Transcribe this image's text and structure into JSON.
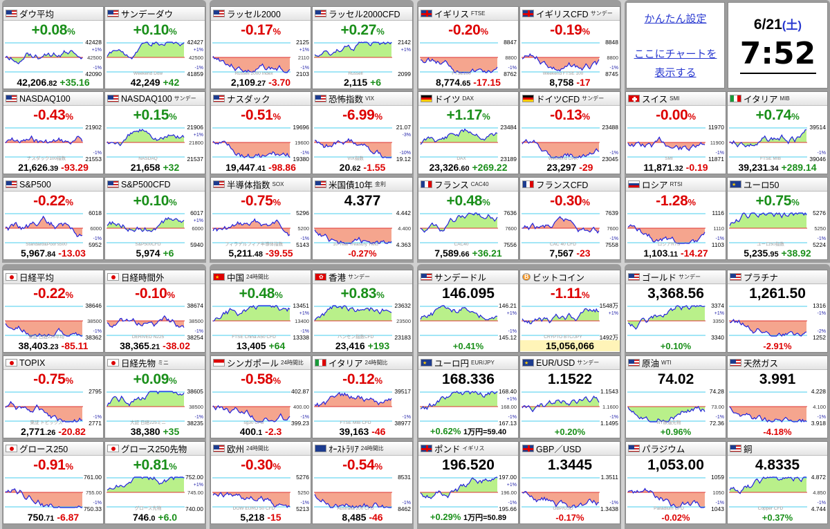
{
  "page": {
    "title": "",
    "setup_link": "かんたん設定",
    "chart_link_1": "ここにチャートを",
    "chart_link_2": "表示する"
  },
  "clock": {
    "date": "6/21",
    "weekday": "(土)",
    "time": "7:52"
  },
  "colors": {
    "up": "#1a8f1a",
    "down": "#dd0000",
    "fill_up": "#b9f08a",
    "fill_down": "#f5a58e",
    "line": "#2222dd",
    "link": "#2a3ad0"
  },
  "tiles": [
    {
      "name": "ダウ平均",
      "sub": "",
      "flag": "us",
      "chg": "+0.08",
      "dir": "up",
      "int": "42,206",
      "dec": ".82",
      "diff": "+35.16",
      "ddir": "up",
      "hi": "42428",
      "lo": "42090",
      "tag": "",
      "side": "+1%",
      "side2": "-1%",
      "mid": "42500",
      "seed": 1
    },
    {
      "name": "サンデーダウ",
      "sub": "",
      "flag": "us",
      "chg": "+0.10",
      "dir": "up",
      "int": "42,249",
      "dec": "",
      "diff": "+42",
      "ddir": "up",
      "hi": "42427",
      "lo": "41859",
      "tag": "Weekend Dow",
      "side": "+1%",
      "side2": "-1%",
      "mid": "42500",
      "seed": 2
    },
    {
      "name": "ラッセル2000",
      "sub": "",
      "flag": "us",
      "chg": "-0.17",
      "dir": "dn",
      "int": "2,109",
      "dec": ".27",
      "diff": "-3.70",
      "ddir": "dn",
      "hi": "2125",
      "lo": "2103",
      "tag": "Russell 2000 Index",
      "side": "+1%",
      "side2": "-1%",
      "mid": "2110",
      "seed": 3
    },
    {
      "name": "ラッセル2000CFD",
      "sub": "",
      "flag": "us",
      "chg": "+0.27",
      "dir": "up",
      "int": "2,115",
      "dec": "",
      "diff": "+6",
      "ddir": "up",
      "hi": "2142",
      "lo": "2099",
      "tag": "Russell",
      "side": "+1%",
      "side2": "",
      "mid": "",
      "seed": 4
    },
    {
      "name": "イギリス",
      "sub": "FTSE",
      "flag": "uk",
      "chg": "-0.20",
      "dir": "dn",
      "int": "8,774",
      "dec": ".65",
      "diff": "-17.15",
      "ddir": "dn",
      "hi": "8847",
      "lo": "8762",
      "tag": "FTSE100",
      "side": "",
      "side2": "-1%",
      "mid": "8800",
      "seed": 5
    },
    {
      "name": "イギリスCFD",
      "sub": "サンデー",
      "flag": "uk",
      "chg": "-0.19",
      "dir": "dn",
      "int": "8,758",
      "dec": "",
      "diff": "-17",
      "ddir": "dn",
      "hi": "8848",
      "lo": "8745",
      "tag": "Weekend FTSE 100",
      "side": "",
      "side2": "-1%",
      "mid": "8800",
      "seed": 6
    },
    {
      "name": "NASDAQ100",
      "sub": "",
      "flag": "us",
      "chg": "-0.43",
      "dir": "dn",
      "int": "21,626",
      "dec": ".39",
      "diff": "-93.29",
      "ddir": "dn",
      "hi": "21902",
      "lo": "21553",
      "tag": "ナスダック100指数",
      "side": "",
      "side2": "-1%",
      "mid": "",
      "seed": 7
    },
    {
      "name": "NASDAQ100",
      "sub": "サンデー",
      "flag": "us",
      "chg": "+0.15",
      "dir": "up",
      "int": "21,658",
      "dec": "",
      "diff": "+32",
      "ddir": "up",
      "hi": "21906",
      "lo": "21537",
      "tag": "NASDAQ",
      "side": "+1%",
      "side2": "",
      "mid": "21800",
      "seed": 8
    },
    {
      "name": "ナスダック",
      "sub": "",
      "flag": "us",
      "chg": "-0.51",
      "dir": "dn",
      "int": "19,447",
      "dec": ".41",
      "diff": "-98.86",
      "ddir": "dn",
      "hi": "19696",
      "lo": "19380",
      "tag": "",
      "side": "",
      "side2": "-1%",
      "mid": "19600",
      "seed": 9
    },
    {
      "name": "恐怖指数",
      "sub": "VIX",
      "flag": "us",
      "chg": "-6.99",
      "dir": "dn",
      "int": "20",
      "dec": ".62",
      "diff": "-1.55",
      "ddir": "dn",
      "hi": "21.07",
      "lo": "19.12",
      "tag": "VIX指数",
      "side": "-3%",
      "side2": "-10%",
      "mid": "",
      "seed": 10
    },
    {
      "name": "ドイツ",
      "sub": "DAX",
      "flag": "de",
      "chg": "+1.17",
      "dir": "up",
      "int": "23,326",
      "dec": ".60",
      "diff": "+269.22",
      "ddir": "up",
      "hi": "23484",
      "lo": "23189",
      "tag": "DAX",
      "side": "",
      "side2": "",
      "mid": "",
      "seed": 11
    },
    {
      "name": "ドイツCFD",
      "sub": "サンデー",
      "flag": "de",
      "chg": "-0.13",
      "dir": "dn",
      "int": "23,297",
      "dec": "",
      "diff": "-29",
      "ddir": "dn",
      "hi": "23488",
      "lo": "23045",
      "tag": "Weekend DAX",
      "side": "",
      "side2": "-1%",
      "mid": "",
      "seed": 12
    },
    {
      "name": "スイス",
      "sub": "SMI",
      "flag": "ch",
      "chg": "-0.00",
      "dir": "dn",
      "int": "11,871",
      "dec": ".32",
      "diff": "-0.19",
      "ddir": "dn",
      "hi": "11970",
      "lo": "11871",
      "tag": "SMI",
      "side": "",
      "side2": "-1%",
      "mid": "11900",
      "seed": 13
    },
    {
      "name": "イタリア",
      "sub": "MIB",
      "flag": "it",
      "chg": "+0.74",
      "dir": "up",
      "int": "39,231",
      "dec": ".34",
      "diff": "+289.14",
      "ddir": "up",
      "hi": "39514",
      "lo": "39046",
      "tag": "FTSE MIB",
      "side": "",
      "side2": "-1%",
      "mid": "",
      "seed": 14
    },
    {
      "name": "S&P500",
      "sub": "",
      "flag": "us",
      "chg": "-0.22",
      "dir": "dn",
      "int": "5,967",
      "dec": ".84",
      "diff": "-13.03",
      "ddir": "dn",
      "hi": "6018",
      "lo": "5952",
      "tag": "Standard&Poor's500",
      "side": "",
      "side2": "-1%",
      "mid": "6000",
      "seed": 15
    },
    {
      "name": "S&P500CFD",
      "sub": "",
      "flag": "us",
      "chg": "+0.10",
      "dir": "up",
      "int": "5,974",
      "dec": "",
      "diff": "+6",
      "ddir": "up",
      "hi": "6017",
      "lo": "5940",
      "tag": "S&P500CFD",
      "side": "+1%",
      "side2": "",
      "mid": "6000",
      "seed": 16
    },
    {
      "name": "半導体指数",
      "sub": "SOX",
      "flag": "us",
      "chg": "-0.75",
      "dir": "dn",
      "int": "5,211",
      "dec": ".48",
      "diff": "-39.55",
      "ddir": "dn",
      "hi": "5296",
      "lo": "5143",
      "tag": "フィラデルフィア半導体指数",
      "side": "",
      "side2": "-1%",
      "mid": "5200",
      "seed": 17
    },
    {
      "name": "米国債10年",
      "sub": "金利",
      "flag": "us",
      "chg": "4.377",
      "dir": "bk",
      "int": "",
      "dec": "",
      "diff": "-0.27%",
      "ddir": "dn",
      "hi": "4.442",
      "lo": "4.363",
      "tag": "10-Year Treasury Yield",
      "side": "",
      "side2": "",
      "mid": "4.400",
      "seed": 18,
      "bigmode": true
    },
    {
      "name": "フランス",
      "sub": "CAC40",
      "flag": "fr",
      "chg": "+0.48",
      "dir": "up",
      "int": "7,589",
      "dec": ".66",
      "diff": "+36.21",
      "ddir": "up",
      "hi": "7636",
      "lo": "7556",
      "tag": "CAC40",
      "side": "",
      "side2": "",
      "mid": "7600",
      "seed": 19
    },
    {
      "name": "フランスCFD",
      "sub": "",
      "flag": "fr",
      "chg": "-0.30",
      "dir": "dn",
      "int": "7,567",
      "dec": "",
      "diff": "-23",
      "ddir": "dn",
      "hi": "7639",
      "lo": "7558",
      "tag": "CAC 40 CFD",
      "side": "",
      "side2": "-1%",
      "mid": "7600",
      "seed": 20
    },
    {
      "name": "ロシア",
      "sub": "RTSI",
      "flag": "ru",
      "chg": "-1.28",
      "dir": "dn",
      "int": "1,103",
      "dec": ".11",
      "diff": "-14.27",
      "ddir": "dn",
      "hi": "1116",
      "lo": "1103",
      "tag": "ロシアRTS",
      "side": "",
      "side2": "-1%",
      "mid": "1110",
      "seed": 21
    },
    {
      "name": "ユーロ50",
      "sub": "",
      "flag": "eu",
      "chg": "+0.75",
      "dir": "up",
      "int": "5,235",
      "dec": ".95",
      "diff": "+38.92",
      "ddir": "up",
      "hi": "5276",
      "lo": "5224",
      "tag": "ユーロ50指数",
      "side": "",
      "side2": "-1%",
      "mid": "5250",
      "seed": 22
    },
    {
      "name": "日経平均",
      "sub": "",
      "flag": "jp",
      "chg": "-0.22",
      "dir": "dn",
      "int": "38,403",
      "dec": ".23",
      "diff": "-85.11",
      "ddir": "dn",
      "hi": "38646",
      "lo": "38362",
      "tag": "東証 日経225平均",
      "side": "",
      "side2": "-1%",
      "mid": "38500",
      "seed": 23
    },
    {
      "name": "日経時間外",
      "sub": "",
      "flag": "jp",
      "chg": "-0.10",
      "dir": "dn",
      "int": "38,365",
      "dec": ".21",
      "diff": "-38.02",
      "ddir": "dn",
      "hi": "38674",
      "lo": "38254",
      "tag": "DERIVED N225",
      "side": "",
      "side2": "-1%",
      "mid": "38500",
      "seed": 24
    },
    {
      "name": "中国",
      "sub": "24時間比",
      "flag": "cn",
      "chg": "+0.48",
      "dir": "up",
      "int": "13,405",
      "dec": "",
      "diff": "+64",
      "ddir": "up",
      "hi": "13451",
      "lo": "13338",
      "tag": "FTSE China A50 CFD",
      "side": "+1%",
      "side2": "-1%",
      "mid": "13400",
      "seed": 25
    },
    {
      "name": "香港",
      "sub": "サンデー",
      "flag": "hk",
      "chg": "+0.83",
      "dir": "up",
      "int": "23,416",
      "dec": "",
      "diff": "+193",
      "ddir": "up",
      "hi": "23632",
      "lo": "23183",
      "tag": "ハンセン指数CFD",
      "side": "",
      "side2": "",
      "mid": "23500",
      "seed": 26
    },
    {
      "name": "サンデードル",
      "sub": "",
      "flag": "us",
      "chg": "146.095",
      "dir": "bk",
      "int": "",
      "dec": "",
      "diff": "+0.41%",
      "ddir": "up",
      "hi": "146.21",
      "lo": "145.12",
      "tag": "",
      "side": "+1%",
      "side2": "-1%",
      "mid": "",
      "seed": 27,
      "bigmode": true
    },
    {
      "name": "ビットコイン",
      "sub": "",
      "flag": "btc",
      "chg": "-1.11",
      "dir": "dn",
      "int": "15,056,066",
      "dec": "",
      "diff": "",
      "ddir": "bk",
      "hi": "1548万",
      "lo": "1492万",
      "tag": "CRYPTO BTC/JPY",
      "side": "+1%",
      "side2": "",
      "mid": "",
      "seed": 28,
      "yellowbtm": true
    },
    {
      "name": "ゴールド",
      "sub": "サンデー",
      "flag": "us",
      "chg": "3,368.56",
      "dir": "bk",
      "int": "",
      "dec": "",
      "diff": "+0.10%",
      "ddir": "up",
      "hi": "3374",
      "lo": "3340",
      "tag": "",
      "side": "+1%",
      "side2": "",
      "mid": "3350",
      "seed": 29,
      "bigmode": true
    },
    {
      "name": "プラチナ",
      "sub": "",
      "flag": "us",
      "chg": "1,261.50",
      "dir": "bk",
      "int": "",
      "dec": "",
      "diff": "-2.91%",
      "ddir": "dn",
      "hi": "1316",
      "lo": "1252",
      "tag": "",
      "side": "-1%",
      "side2": "-2%",
      "mid": "",
      "seed": 30,
      "bigmode": true
    },
    {
      "name": "TOPIX",
      "sub": "",
      "flag": "jp",
      "chg": "-0.75",
      "dir": "dn",
      "int": "2,771",
      "dec": ".26",
      "diff": "-20.82",
      "ddir": "dn",
      "hi": "2795",
      "lo": "2771",
      "tag": "東証 トピックス",
      "side": "",
      "side2": "-1%",
      "mid": "",
      "seed": 31
    },
    {
      "name": "日経先物",
      "sub": "ミニ",
      "flag": "jp",
      "chg": "+0.09",
      "dir": "up",
      "int": "38,380",
      "dec": "",
      "diff": "+35",
      "ddir": "up",
      "hi": "38605",
      "lo": "38235",
      "tag": "大証 日経225ミニ",
      "side": "",
      "side2": "-1%",
      "mid": "38500",
      "seed": 32
    },
    {
      "name": "シンガポール",
      "sub": "24時間比",
      "flag": "sg",
      "chg": "-0.58",
      "dir": "dn",
      "int": "400",
      "dec": ".1",
      "diff": "-2.3",
      "ddir": "dn",
      "hi": "402.87",
      "lo": "399.23",
      "tag": "sg30 CFD",
      "side": "",
      "side2": "-1%",
      "mid": "400.00",
      "seed": 33
    },
    {
      "name": "イタリア",
      "sub": "24時間比",
      "flag": "it",
      "chg": "-0.12",
      "dir": "dn",
      "int": "39,163",
      "dec": "",
      "diff": "-46",
      "ddir": "dn",
      "hi": "39517",
      "lo": "38977",
      "tag": "FTSE MIB CFD",
      "side": "",
      "side2": "-1%",
      "mid": "",
      "seed": 34
    },
    {
      "name": "ユーロ円",
      "sub": "EUR/JPY",
      "flag": "eu",
      "chg": "168.336",
      "dir": "bk",
      "int": "",
      "dec": "",
      "diff": "+0.62%",
      "ddir": "up",
      "hi": "168.40",
      "lo": "167.13",
      "tag": "",
      "side": "+1%",
      "side2": "-1%",
      "mid": "168.00",
      "seed": 35,
      "bigmode": true,
      "extra": "1万円=59.40"
    },
    {
      "name": "EUR/USD",
      "sub": "サンデー",
      "flag": "eu",
      "chg": "1.1522",
      "dir": "bk",
      "int": "",
      "dec": "",
      "diff": "+0.20%",
      "ddir": "up",
      "hi": "1.1543",
      "lo": "1.1495",
      "tag": "",
      "side": "",
      "side2": "-1%",
      "mid": "1.1600",
      "seed": 36,
      "bigmode": true
    },
    {
      "name": "原油",
      "sub": "WTI",
      "flag": "us",
      "chg": "74.02",
      "dir": "bk",
      "int": "",
      "dec": "",
      "diff": "+0.96%",
      "ddir": "up",
      "hi": "74.28",
      "lo": "72.36",
      "tag": "NY原油先物",
      "side": "",
      "side2": "-1%",
      "mid": "73.00",
      "seed": 37,
      "bigmode": true
    },
    {
      "name": "天然ガス",
      "sub": "",
      "flag": "us",
      "chg": "3.991",
      "dir": "bk",
      "int": "",
      "dec": "",
      "diff": "-4.18%",
      "ddir": "dn",
      "hi": "4.228",
      "lo": "3.918",
      "tag": "",
      "side": "",
      "side2": "-1%",
      "mid": "4.100",
      "seed": 38,
      "bigmode": true
    },
    {
      "name": "グロース250",
      "sub": "",
      "flag": "jp",
      "chg": "-0.91",
      "dir": "dn",
      "int": "750",
      "dec": ".71",
      "diff": "-6.87",
      "ddir": "dn",
      "hi": "761.00",
      "lo": "750.33",
      "tag": "",
      "side": "",
      "side2": "-1%",
      "mid": "755.00",
      "seed": 39
    },
    {
      "name": "グロース250先物",
      "sub": "",
      "flag": "jp",
      "chg": "+0.81",
      "dir": "up",
      "int": "746",
      "dec": ".0",
      "diff": "+6.0",
      "ddir": "up",
      "hi": "752.00",
      "lo": "740.00",
      "tag": "グロース先物",
      "side": "+1%",
      "side2": "",
      "mid": "745.00",
      "seed": 40
    },
    {
      "name": "欧州",
      "sub": "24時間比",
      "flag": "us",
      "chg": "-0.30",
      "dir": "dn",
      "int": "5,218",
      "dec": "",
      "diff": "-15",
      "ddir": "dn",
      "hi": "5276",
      "lo": "5213",
      "tag": "DOW EURO 50 CFD",
      "side": "",
      "side2": "-1%",
      "mid": "5250",
      "seed": 41
    },
    {
      "name": "ｵｰｽﾄﾗﾘｱ",
      "sub": "24時間比",
      "flag": "au",
      "chg": "-0.54",
      "dir": "dn",
      "int": "8,485",
      "dec": "",
      "diff": "-46",
      "ddir": "dn",
      "hi": "8531",
      "lo": "8462",
      "tag": "Australia 200 CFD",
      "side": "",
      "side2": "-1%",
      "mid": "",
      "seed": 42
    },
    {
      "name": "ポンド",
      "sub": "イギリス",
      "flag": "uk",
      "chg": "196.520",
      "dir": "bk",
      "int": "",
      "dec": "",
      "diff": "+0.29%",
      "ddir": "up",
      "hi": "197.00",
      "lo": "195.66",
      "tag": "",
      "side": "+1%",
      "side2": "-1%",
      "mid": "196.00",
      "seed": 43,
      "bigmode": true,
      "extra": "1万円=50.89"
    },
    {
      "name": "GBP／USD",
      "sub": "",
      "flag": "uk",
      "chg": "1.3445",
      "dir": "bk",
      "int": "",
      "dec": "",
      "diff": "-0.17%",
      "ddir": "dn",
      "hi": "1.3511",
      "lo": "1.3438",
      "tag": "GBP/USD",
      "side": "",
      "side2": "-1%",
      "mid": "",
      "seed": 44,
      "bigmode": true
    },
    {
      "name": "パラジウム",
      "sub": "",
      "flag": "us",
      "chg": "1,053.00",
      "dir": "bk",
      "int": "",
      "dec": "",
      "diff": "-0.02%",
      "ddir": "dn",
      "hi": "1059",
      "lo": "1043",
      "tag": "Palladium CFD",
      "side": "",
      "side2": "-1%",
      "mid": "1050",
      "seed": 45,
      "bigmode": true
    },
    {
      "name": "銅",
      "sub": "",
      "flag": "us",
      "chg": "4.8335",
      "dir": "bk",
      "int": "",
      "dec": "",
      "diff": "+0.37%",
      "ddir": "up",
      "hi": "4.872",
      "lo": "4.744",
      "tag": "Copper CFD",
      "side": "",
      "side2": "-1%",
      "mid": "4.850",
      "seed": 46,
      "bigmode": true
    }
  ]
}
